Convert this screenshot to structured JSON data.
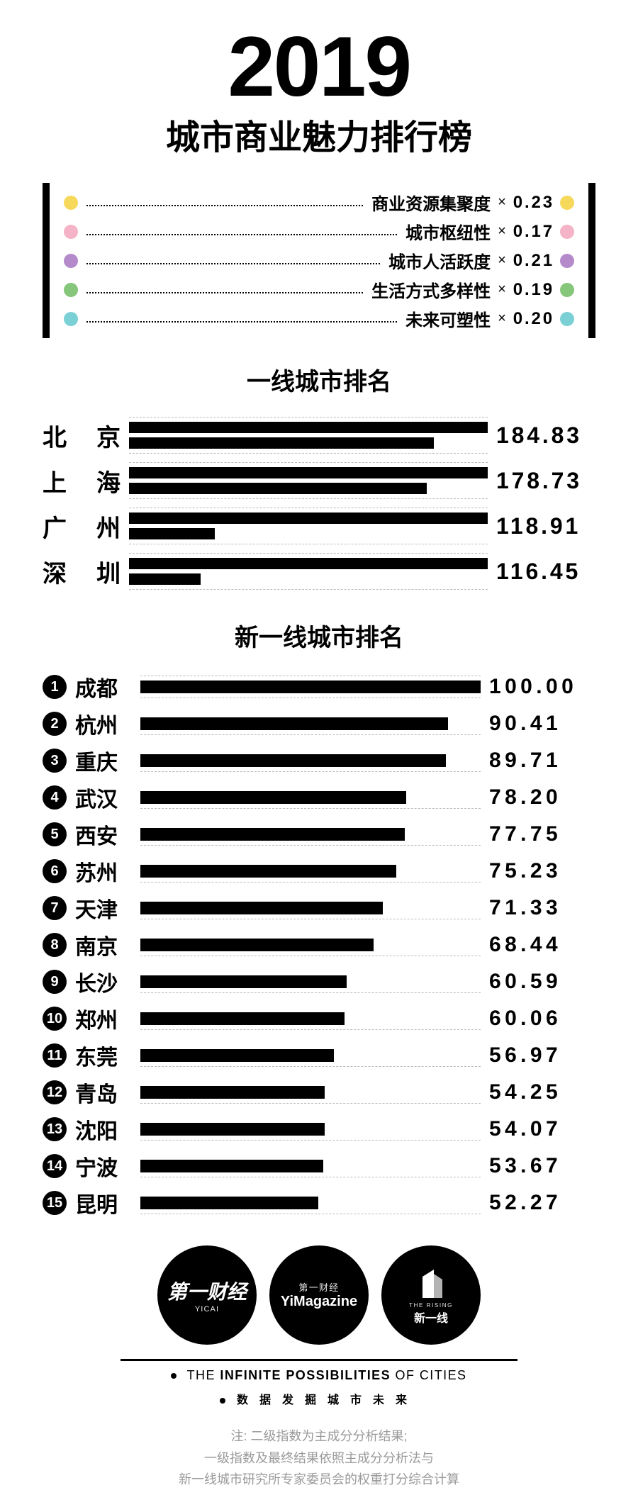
{
  "title": {
    "year": "2019",
    "sub": "城市商业魅力排行榜",
    "year_fontsize": 120,
    "sub_fontsize": 48
  },
  "legend": {
    "items": [
      {
        "color": "#f6d95b",
        "label": "商业资源集聚度",
        "weight": "0.23"
      },
      {
        "color": "#f4b3c7",
        "label": "城市枢纽性",
        "weight": "0.17"
      },
      {
        "color": "#b58acb",
        "label": "城市人活跃度",
        "weight": "0.21"
      },
      {
        "color": "#86c67a",
        "label": "生活方式多样性",
        "weight": "0.19"
      },
      {
        "color": "#7bd0d6",
        "label": "未来可塑性",
        "weight": "0.20"
      }
    ],
    "x_symbol": "×"
  },
  "tier1": {
    "heading": "一线城市排名",
    "heading_fontsize": 34,
    "bar_max": 200,
    "cities": [
      {
        "name": "北京",
        "barA": 200,
        "barB": 170,
        "value": "184.83"
      },
      {
        "name": "上海",
        "barA": 200,
        "barB": 166,
        "value": "178.73"
      },
      {
        "name": "广州",
        "barA": 200,
        "barB": 48,
        "value": "118.91"
      },
      {
        "name": "深圳",
        "barA": 200,
        "barB": 40,
        "value": "116.45"
      }
    ]
  },
  "tier2": {
    "heading": "新一线城市排名",
    "heading_fontsize": 34,
    "bar_max": 100,
    "cities": [
      {
        "rank": "1",
        "name": "成都",
        "value": 100.0,
        "display": "100.00"
      },
      {
        "rank": "2",
        "name": "杭州",
        "value": 90.41,
        "display": "90.41"
      },
      {
        "rank": "3",
        "name": "重庆",
        "value": 89.71,
        "display": "89.71"
      },
      {
        "rank": "4",
        "name": "武汉",
        "value": 78.2,
        "display": "78.20"
      },
      {
        "rank": "5",
        "name": "西安",
        "value": 77.75,
        "display": "77.75"
      },
      {
        "rank": "6",
        "name": "苏州",
        "value": 75.23,
        "display": "75.23"
      },
      {
        "rank": "7",
        "name": "天津",
        "value": 71.33,
        "display": "71.33"
      },
      {
        "rank": "8",
        "name": "南京",
        "value": 68.44,
        "display": "68.44"
      },
      {
        "rank": "9",
        "name": "长沙",
        "value": 60.59,
        "display": "60.59"
      },
      {
        "rank": "10",
        "name": "郑州",
        "value": 60.06,
        "display": "60.06"
      },
      {
        "rank": "11",
        "name": "东莞",
        "value": 56.97,
        "display": "56.97"
      },
      {
        "rank": "12",
        "name": "青岛",
        "value": 54.25,
        "display": "54.25"
      },
      {
        "rank": "13",
        "name": "沈阳",
        "value": 54.07,
        "display": "54.07"
      },
      {
        "rank": "14",
        "name": "宁波",
        "value": 53.67,
        "display": "53.67"
      },
      {
        "rank": "15",
        "name": "昆明",
        "value": 52.27,
        "display": "52.27"
      }
    ]
  },
  "logos": {
    "a": {
      "line1": "第一财经",
      "line2": "YICAI"
    },
    "b": {
      "line1": "第一财经",
      "line2": "YiMagazine"
    },
    "c": {
      "line1": "THE RISING",
      "line2": "新一线"
    }
  },
  "tagline": {
    "en_pre": "THE ",
    "en_bold": "INFINITE POSSIBILITIES ",
    "en_post": "OF CITIES",
    "cn": "数据发掘城市未来"
  },
  "footnote": {
    "l1": "注: 二级指数为主成分分析结果;",
    "l2": "一级指数及最终结果依照主成分分析法与",
    "l3": "新一线城市研究所专家委员会的权重打分综合计算"
  },
  "style": {
    "bar_color": "#000000",
    "background": "#ffffff",
    "dash_color": "#bbbbbb",
    "footnote_color": "#9a9a9a"
  }
}
